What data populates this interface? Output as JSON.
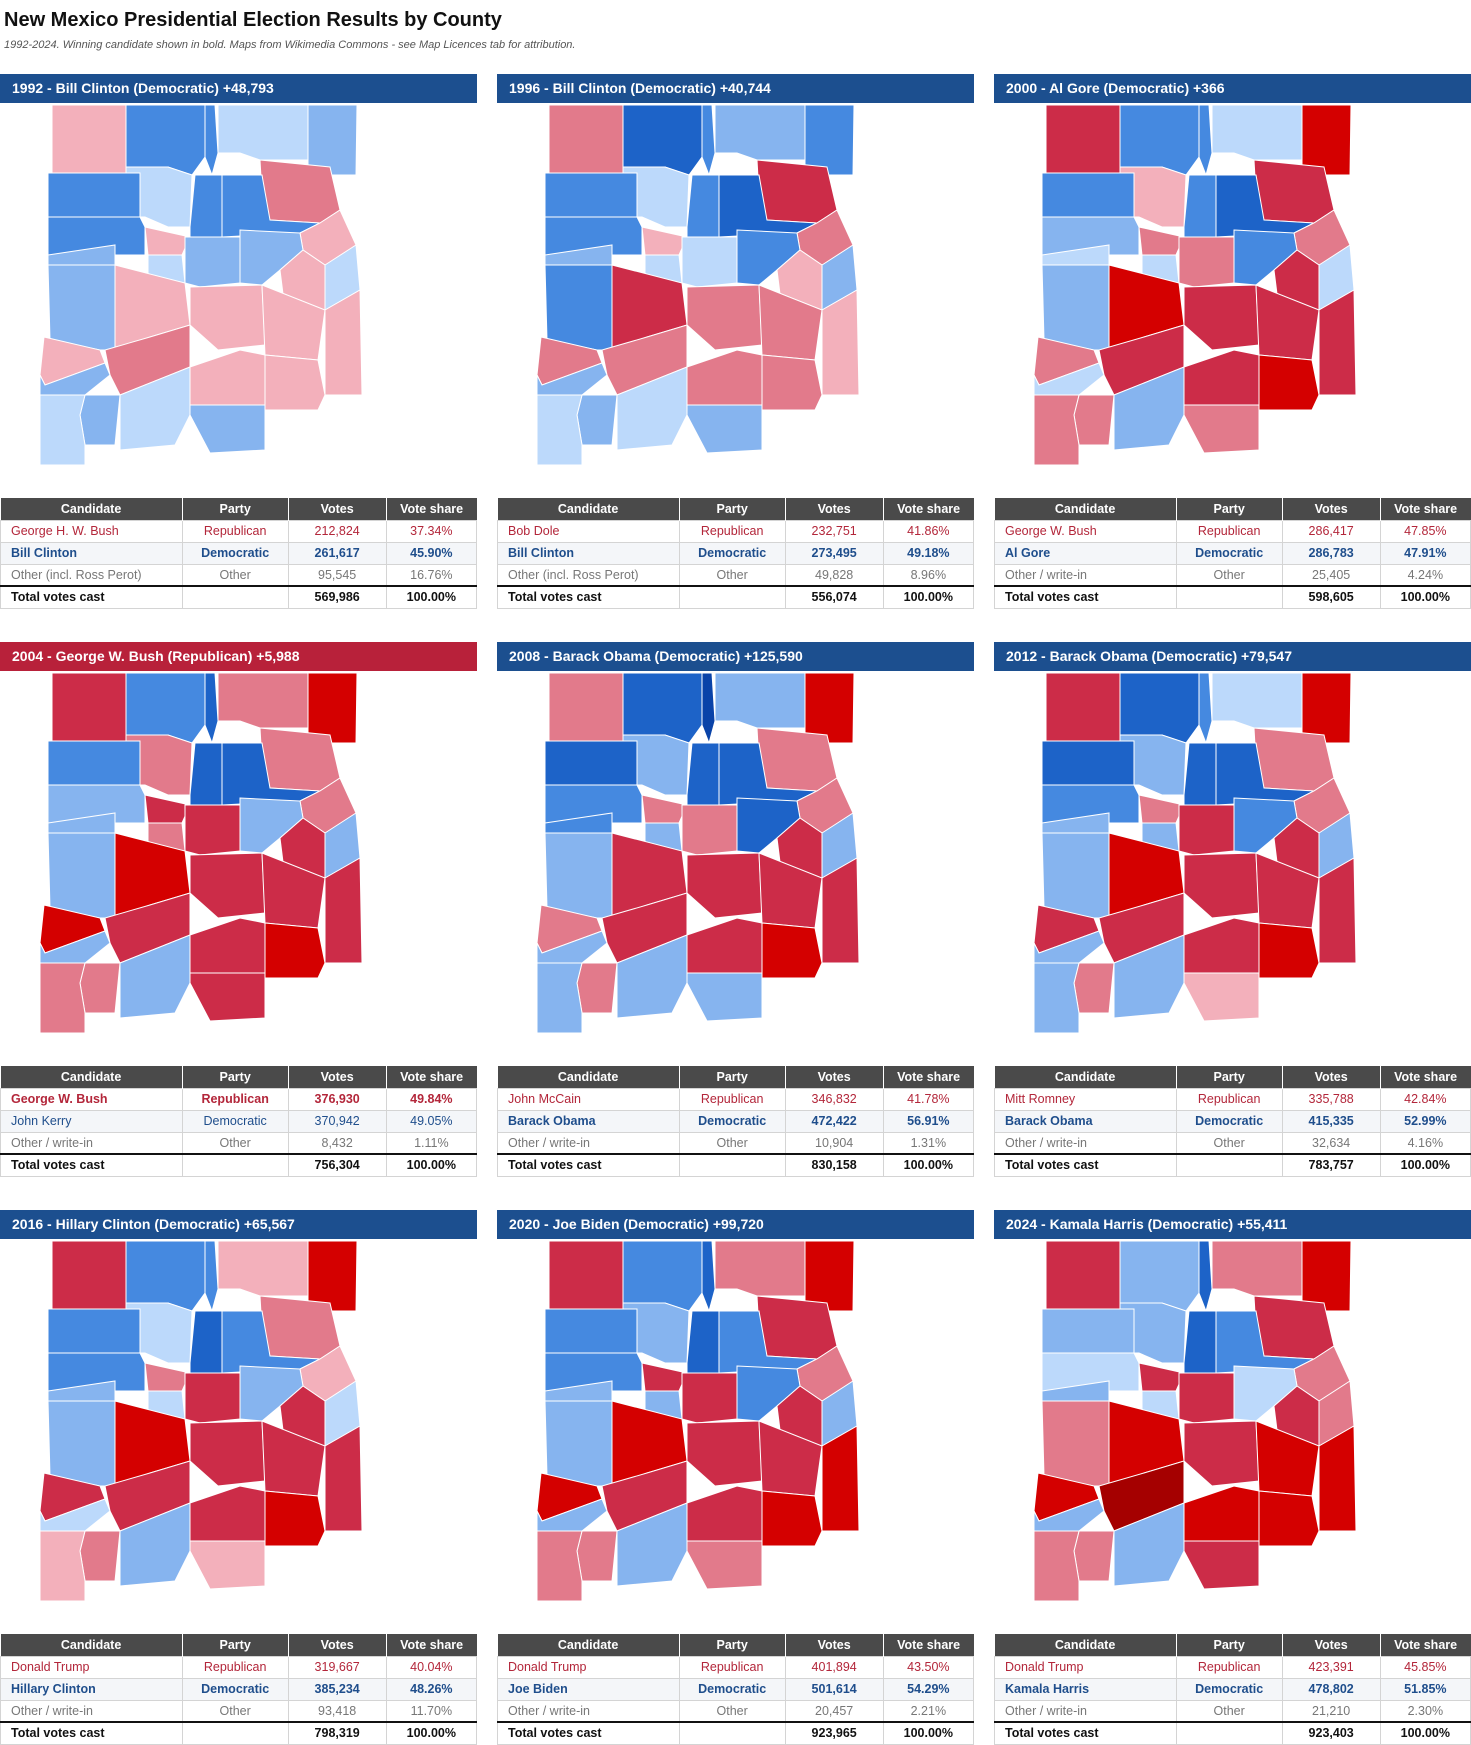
{
  "title": "New Mexico Presidential Election Results by County",
  "subtitle": "1992-2024. Winning candidate shown in bold. Maps from Wikimedia Commons - see Map Licences tab for attribution.",
  "colors": {
    "dem_header": "#1c4f8f",
    "rep_header": "#b8213a",
    "dem_text": "#1f4e8c",
    "rep_text": "#b3263a",
    "table_header": "#4a4a4a",
    "D1": "#bcd9fb",
    "D2": "#86b4ef",
    "D3": "#4589e0",
    "D4": "#1d63c8",
    "D5": "#0a43a8",
    "R1": "#f3b0bb",
    "R2": "#e27a8b",
    "R3": "#cc2c48",
    "R4": "#d40000",
    "R5": "#a50000"
  },
  "table_headers": [
    "Candidate",
    "Party",
    "Votes",
    "Vote share"
  ],
  "panels": [
    {
      "year": "1992",
      "winner_party": "dem",
      "header": "1992   -   Bill Clinton (Democratic) +48,793",
      "rows": [
        {
          "candidate": "George H. W. Bush",
          "party": "Republican",
          "votes": "212,824",
          "share": "37.34%",
          "type": "rep",
          "winner": false
        },
        {
          "candidate": "Bill Clinton",
          "party": "Democratic",
          "votes": "261,617",
          "share": "45.90%",
          "type": "dem",
          "winner": true
        },
        {
          "candidate": "Other (incl. Ross Perot)",
          "party": "Other",
          "votes": "95,545",
          "share": "16.76%",
          "type": "other",
          "winner": false
        }
      ],
      "total": {
        "label": "Total votes cast",
        "votes": "569,986",
        "share": "100.00%"
      },
      "counties": [
        "R1",
        "D3",
        "D3",
        "D1",
        "D2",
        "R2",
        "D3",
        "D1",
        "D3",
        "D3",
        "R1",
        "D3",
        "R1",
        "D2",
        "D1",
        "D2",
        "D2",
        "R1",
        "D2",
        "R1",
        "D1",
        "R1",
        "R1",
        "R1",
        "R1",
        "R2",
        "R1",
        "R1",
        "D2",
        "D2",
        "D1",
        "D2",
        "D1"
      ]
    },
    {
      "year": "1996",
      "winner_party": "dem",
      "header": "1996   -   Bill Clinton (Democratic) +40,744",
      "rows": [
        {
          "candidate": "Bob Dole",
          "party": "Republican",
          "votes": "232,751",
          "share": "41.86%",
          "type": "rep",
          "winner": false
        },
        {
          "candidate": "Bill Clinton",
          "party": "Democratic",
          "votes": "273,495",
          "share": "49.18%",
          "type": "dem",
          "winner": true
        },
        {
          "candidate": "Other (incl. Ross Perot)",
          "party": "Other",
          "votes": "49,828",
          "share": "8.96%",
          "type": "other",
          "winner": false
        }
      ],
      "total": {
        "label": "Total votes cast",
        "votes": "556,074",
        "share": "100.00%"
      },
      "counties": [
        "R2",
        "D4",
        "D3",
        "D2",
        "D3",
        "R3",
        "D3",
        "D1",
        "D3",
        "D4",
        "R2",
        "D3",
        "R1",
        "D2",
        "D1",
        "D3",
        "D1",
        "R1",
        "D3",
        "R3",
        "D2",
        "R2",
        "R2",
        "R1",
        "R2",
        "R2",
        "R2",
        "R2",
        "D2",
        "D2",
        "D1",
        "D2",
        "D1"
      ]
    },
    {
      "year": "2000",
      "winner_party": "dem",
      "header": "2000   -   Al Gore (Democratic) +366",
      "rows": [
        {
          "candidate": "George W. Bush",
          "party": "Republican",
          "votes": "286,417",
          "share": "47.85%",
          "type": "rep",
          "winner": false
        },
        {
          "candidate": "Al Gore",
          "party": "Democratic",
          "votes": "286,783",
          "share": "47.91%",
          "type": "dem",
          "winner": true
        },
        {
          "candidate": "Other / write-in",
          "party": "Other",
          "votes": "25,405",
          "share": "4.24%",
          "type": "other",
          "winner": false
        }
      ],
      "total": {
        "label": "Total votes cast",
        "votes": "598,605",
        "share": "100.00%"
      },
      "counties": [
        "R3",
        "D3",
        "D3",
        "D1",
        "R4",
        "R3",
        "D3",
        "R1",
        "D3",
        "D4",
        "R2",
        "D2",
        "R2",
        "D1",
        "D1",
        "D3",
        "R2",
        "R3",
        "D2",
        "R4",
        "D1",
        "R3",
        "R3",
        "R3",
        "R2",
        "R3",
        "R3",
        "R4",
        "D1",
        "R2",
        "D2",
        "R2",
        "R2"
      ]
    },
    {
      "year": "2004",
      "winner_party": "rep",
      "header": "2004   -   George W. Bush (Republican) +5,988",
      "rows": [
        {
          "candidate": "George W. Bush",
          "party": "Republican",
          "votes": "376,930",
          "share": "49.84%",
          "type": "rep",
          "winner": true
        },
        {
          "candidate": "John Kerry",
          "party": "Democratic",
          "votes": "370,942",
          "share": "49.05%",
          "type": "dem",
          "winner": false
        },
        {
          "candidate": "Other / write-in",
          "party": "Other",
          "votes": "8,432",
          "share": "1.11%",
          "type": "other",
          "winner": false
        }
      ],
      "total": {
        "label": "Total votes cast",
        "votes": "756,304",
        "share": "100.00%"
      },
      "counties": [
        "R3",
        "D3",
        "D4",
        "R2",
        "R4",
        "R2",
        "D3",
        "R2",
        "D4",
        "D4",
        "R2",
        "D2",
        "R3",
        "D2",
        "R2",
        "D2",
        "R3",
        "R3",
        "D2",
        "R4",
        "D2",
        "R3",
        "R3",
        "R3",
        "R4",
        "R3",
        "R3",
        "R4",
        "D2",
        "R2",
        "D2",
        "R3",
        "R2"
      ]
    },
    {
      "year": "2008",
      "winner_party": "dem",
      "header": "2008   -   Barack Obama (Democratic) +125,590",
      "rows": [
        {
          "candidate": "John McCain",
          "party": "Republican",
          "votes": "346,832",
          "share": "41.78%",
          "type": "rep",
          "winner": false
        },
        {
          "candidate": "Barack Obama",
          "party": "Democratic",
          "votes": "472,422",
          "share": "56.91%",
          "type": "dem",
          "winner": true
        },
        {
          "candidate": "Other / write-in",
          "party": "Other",
          "votes": "10,904",
          "share": "1.31%",
          "type": "other",
          "winner": false
        }
      ],
      "total": {
        "label": "Total votes cast",
        "votes": "830,158",
        "share": "100.00%"
      },
      "counties": [
        "R2",
        "D4",
        "D5",
        "D2",
        "R4",
        "R2",
        "D4",
        "D2",
        "D4",
        "D4",
        "R2",
        "D3",
        "R2",
        "D3",
        "D2",
        "D4",
        "R2",
        "R3",
        "D2",
        "R3",
        "D2",
        "R3",
        "R3",
        "R3",
        "R2",
        "R3",
        "R3",
        "R4",
        "D2",
        "R2",
        "D2",
        "D2",
        "D2"
      ]
    },
    {
      "year": "2012",
      "winner_party": "dem",
      "header": "2012   -   Barack Obama (Democratic) +79,547",
      "rows": [
        {
          "candidate": "Mitt Romney",
          "party": "Republican",
          "votes": "335,788",
          "share": "42.84%",
          "type": "rep",
          "winner": false
        },
        {
          "candidate": "Barack Obama",
          "party": "Democratic",
          "votes": "415,335",
          "share": "52.99%",
          "type": "dem",
          "winner": true
        },
        {
          "candidate": "Other / write-in",
          "party": "Other",
          "votes": "32,634",
          "share": "4.16%",
          "type": "other",
          "winner": false
        }
      ],
      "total": {
        "label": "Total votes cast",
        "votes": "783,757",
        "share": "100.00%"
      },
      "counties": [
        "R3",
        "D4",
        "D3",
        "D1",
        "R4",
        "R2",
        "D4",
        "D2",
        "D4",
        "D4",
        "R2",
        "D3",
        "R2",
        "D2",
        "D2",
        "D3",
        "R3",
        "R3",
        "D2",
        "R4",
        "D2",
        "R3",
        "R3",
        "R3",
        "R3",
        "R3",
        "R3",
        "R4",
        "D2",
        "R2",
        "D2",
        "R1",
        "D2"
      ]
    },
    {
      "year": "2016",
      "winner_party": "dem",
      "header": "2016   -   Hillary Clinton (Democratic) +65,567",
      "rows": [
        {
          "candidate": "Donald Trump",
          "party": "Republican",
          "votes": "319,667",
          "share": "40.04%",
          "type": "rep",
          "winner": false
        },
        {
          "candidate": "Hillary Clinton",
          "party": "Democratic",
          "votes": "385,234",
          "share": "48.26%",
          "type": "dem",
          "winner": true
        },
        {
          "candidate": "Other / write-in",
          "party": "Other",
          "votes": "93,418",
          "share": "11.70%",
          "type": "other",
          "winner": false
        }
      ],
      "total": {
        "label": "Total votes cast",
        "votes": "798,319",
        "share": "100.00%"
      },
      "counties": [
        "R3",
        "D3",
        "D3",
        "R1",
        "R4",
        "R2",
        "D3",
        "D1",
        "D4",
        "D3",
        "R1",
        "D3",
        "R2",
        "D2",
        "D1",
        "D2",
        "R3",
        "R3",
        "D2",
        "R4",
        "D1",
        "R3",
        "R3",
        "R3",
        "R3",
        "R3",
        "R3",
        "R4",
        "D1",
        "R2",
        "D2",
        "R1",
        "R1"
      ]
    },
    {
      "year": "2020",
      "winner_party": "dem",
      "header": "2020   -   Joe Biden (Democratic) +99,720",
      "rows": [
        {
          "candidate": "Donald Trump",
          "party": "Republican",
          "votes": "401,894",
          "share": "43.50%",
          "type": "rep",
          "winner": false
        },
        {
          "candidate": "Joe Biden",
          "party": "Democratic",
          "votes": "501,614",
          "share": "54.29%",
          "type": "dem",
          "winner": true
        },
        {
          "candidate": "Other / write-in",
          "party": "Other",
          "votes": "20,457",
          "share": "2.21%",
          "type": "other",
          "winner": false
        }
      ],
      "total": {
        "label": "Total votes cast",
        "votes": "923,965",
        "share": "100.00%"
      },
      "counties": [
        "R3",
        "D3",
        "D4",
        "R2",
        "R4",
        "R3",
        "D3",
        "D2",
        "D4",
        "D3",
        "R2",
        "D3",
        "R3",
        "D2",
        "D2",
        "D3",
        "R3",
        "R3",
        "D2",
        "R4",
        "D2",
        "R3",
        "R3",
        "R4",
        "R4",
        "R3",
        "R3",
        "R4",
        "D2",
        "R2",
        "D2",
        "R2",
        "R2"
      ]
    },
    {
      "year": "2024",
      "winner_party": "dem",
      "header": "2024   -   Kamala Harris (Democratic) +55,411",
      "rows": [
        {
          "candidate": "Donald Trump",
          "party": "Republican",
          "votes": "423,391",
          "share": "45.85%",
          "type": "rep",
          "winner": false
        },
        {
          "candidate": "Kamala Harris",
          "party": "Democratic",
          "votes": "478,802",
          "share": "51.85%",
          "type": "dem",
          "winner": true
        },
        {
          "candidate": "Other / write-in",
          "party": "Other",
          "votes": "21,210",
          "share": "2.30%",
          "type": "other",
          "winner": false
        }
      ],
      "total": {
        "label": "Total votes cast",
        "votes": "923,403",
        "share": "100.00%"
      },
      "counties": [
        "R3",
        "D2",
        "D4",
        "R2",
        "R4",
        "R3",
        "D2",
        "D2",
        "D4",
        "D3",
        "R2",
        "D1",
        "R3",
        "D2",
        "D1",
        "D1",
        "R3",
        "R3",
        "R2",
        "R4",
        "R2",
        "R3",
        "R4",
        "R4",
        "R4",
        "R5",
        "R4",
        "R4",
        "D2",
        "R2",
        "D2",
        "R3",
        "R2"
      ]
    }
  ]
}
